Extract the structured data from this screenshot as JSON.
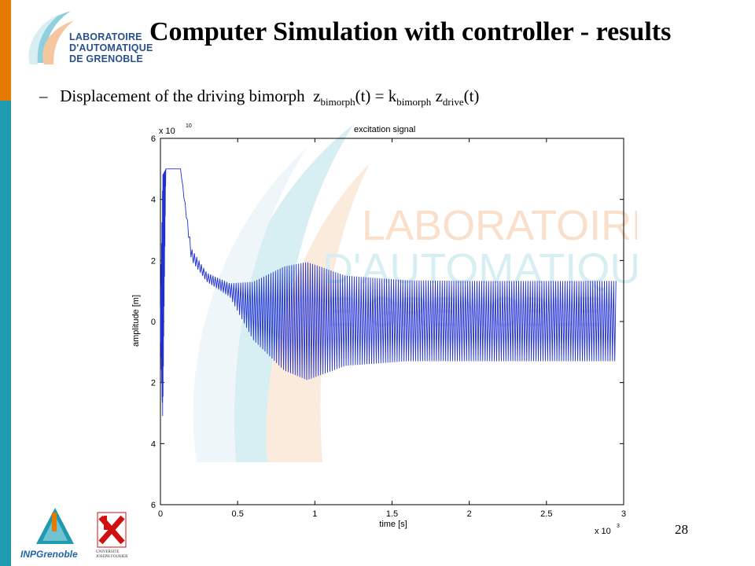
{
  "slide": {
    "title": "Computer Simulation with controller - results",
    "bullet": {
      "dash": "–",
      "text": "Displacement of the driving bimorph",
      "equation": {
        "z1": "z",
        "sub1": "bimorph",
        "mid": "(t) = k",
        "sub2": "bimorph",
        "z2": " z",
        "sub3": "drive",
        "end": "(t)"
      }
    },
    "slide_number": "28",
    "logo_lines": [
      "LABORATOIRE",
      "D'AUTOMATIQUE",
      "DE GRENOBLE"
    ],
    "watermark_lines": [
      "LABORATOIRE",
      "D'AUTOMATIQUE",
      "DE GRENOBLE"
    ],
    "inp_logo_text": "INPGrenoble",
    "ujf_logo_text": "UNIVERSITE JOSEPH FOURIER",
    "colors": {
      "orange_bar": "#e57a00",
      "teal_bar": "#1f9ab0",
      "signal": "#1f2fd0",
      "logo_blue": "#2a4f8f"
    }
  },
  "chart_data": {
    "type": "line",
    "title": "excitation signal",
    "xlabel": "time [s]",
    "ylabel": "amplitude [m]",
    "x_multiplier": "x 10",
    "x_multiplier_exp": "3",
    "y_multiplier": "x 10",
    "y_multiplier_exp": "10",
    "xlim": [
      0,
      3000
    ],
    "ylim": [
      -6,
      6
    ],
    "xticks": [
      0,
      500,
      1000,
      1500,
      2000,
      2500,
      3000
    ],
    "xtick_labels": [
      "0",
      "0.5",
      "1",
      "1.5",
      "2",
      "2.5",
      "3"
    ],
    "yticks": [
      6,
      4,
      2,
      0,
      -2,
      -4,
      -6
    ],
    "ytick_labels": [
      "6",
      "4",
      "2",
      "0",
      "2",
      "4",
      "6"
    ],
    "grid": false,
    "series": [
      {
        "envelope_points": [
          {
            "t": 0,
            "upper": 0.5,
            "lower": -0.5
          },
          {
            "t": 15,
            "upper": 4.8,
            "lower": -3.2
          },
          {
            "t": 35,
            "upper": 5.0,
            "lower": 5.0
          },
          {
            "t": 130,
            "upper": 5.0,
            "lower": 5.0
          },
          {
            "t": 200,
            "upper": 2.4,
            "lower": 2.0
          },
          {
            "t": 300,
            "upper": 1.6,
            "lower": 1.3
          },
          {
            "t": 450,
            "upper": 1.25,
            "lower": 0.8
          },
          {
            "t": 600,
            "upper": 1.3,
            "lower": -0.6
          },
          {
            "t": 800,
            "upper": 1.8,
            "lower": -1.6
          },
          {
            "t": 950,
            "upper": 1.95,
            "lower": -1.92
          },
          {
            "t": 1200,
            "upper": 1.5,
            "lower": -1.45
          },
          {
            "t": 1600,
            "upper": 1.35,
            "lower": -1.3
          },
          {
            "t": 2000,
            "upper": 1.33,
            "lower": -1.3
          },
          {
            "t": 2950,
            "upper": 1.33,
            "lower": -1.3
          }
        ]
      }
    ]
  }
}
